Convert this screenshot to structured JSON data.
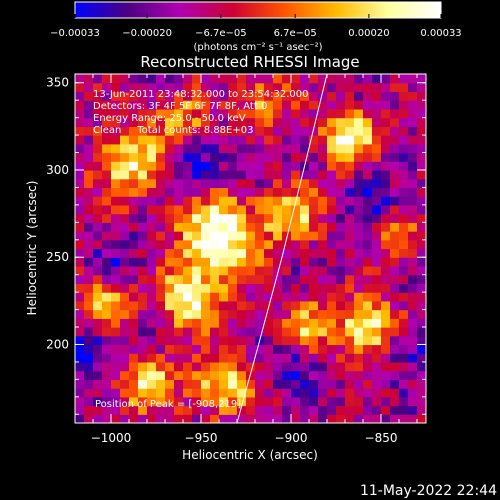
{
  "chart_data": {
    "type": "heatmap",
    "title": "Reconstructed RHESSI Image",
    "xlabel": "Heliocentric X (arcsec)",
    "ylabel": "Heliocentric Y (arcsec)",
    "xlim": [
      -1020,
      -825
    ],
    "ylim": [
      155,
      355
    ],
    "x_ticks": [
      {
        "value": -1000,
        "label": "−1000"
      },
      {
        "value": -950,
        "label": "−950"
      },
      {
        "value": -900,
        "label": "−900"
      },
      {
        "value": -850,
        "label": "−850"
      }
    ],
    "y_ticks": [
      {
        "value": 200,
        "label": "200"
      },
      {
        "value": 250,
        "label": "250"
      },
      {
        "value": 300,
        "label": "300"
      },
      {
        "value": 350,
        "label": "350"
      }
    ],
    "colorbar": {
      "range": [
        -0.00033,
        0.00033
      ],
      "tick_values": [
        -0.00033,
        -0.0002,
        -6.7e-05,
        6.7e-05,
        0.0002,
        0.00033
      ],
      "tick_labels": [
        "−0.00033",
        "−0.00020",
        "−6.7e−05",
        "6.7e−05",
        "0.00020",
        "0.00033"
      ],
      "unit_label": "(photons cm⁻² s⁻¹ asec⁻²)",
      "colors": [
        "#0000ff",
        "#4b0082",
        "#b000b0",
        "#cc0033",
        "#ff5500",
        "#ffbb00",
        "#ffffa0",
        "#ffffff"
      ]
    },
    "info_lines": [
      "13-Jun-2011 23:48:32.000 to 23:54:32.000",
      "Detectors: 3F 4F 5F 6F 7F 8F, Att 0",
      "Energy Range: 25.0 - 50.0 keV",
      "Clean     Total counts: 8.88E+03"
    ],
    "peak_label": "Position of Peak = [-908,219]",
    "limb_points": [
      [
        -930,
        155
      ],
      [
        -918,
        200
      ],
      [
        -905,
        250
      ],
      [
        -893,
        300
      ],
      [
        -880,
        355
      ]
    ],
    "hotspots": [
      {
        "x": -940,
        "y": 262,
        "a": 1.0,
        "s": 16
      },
      {
        "x": -956,
        "y": 226,
        "a": 0.85,
        "s": 12
      },
      {
        "x": -938,
        "y": 178,
        "a": 0.75,
        "s": 12
      },
      {
        "x": -980,
        "y": 178,
        "a": 0.7,
        "s": 11
      },
      {
        "x": -990,
        "y": 305,
        "a": 0.75,
        "s": 14
      },
      {
        "x": -1005,
        "y": 225,
        "a": 0.6,
        "s": 10
      },
      {
        "x": -900,
        "y": 275,
        "a": 0.6,
        "s": 12
      },
      {
        "x": -868,
        "y": 320,
        "a": 0.85,
        "s": 11
      },
      {
        "x": -858,
        "y": 210,
        "a": 0.9,
        "s": 11
      },
      {
        "x": -890,
        "y": 212,
        "a": 0.55,
        "s": 10
      },
      {
        "x": -915,
        "y": 340,
        "a": 0.55,
        "s": 10
      },
      {
        "x": -840,
        "y": 260,
        "a": 0.45,
        "s": 9
      },
      {
        "x": -960,
        "y": 330,
        "a": 0.5,
        "s": 10
      }
    ],
    "coldspots": [
      {
        "x": -955,
        "y": 300,
        "a": 0.9,
        "s": 10
      },
      {
        "x": -1010,
        "y": 195,
        "a": 0.8,
        "s": 10
      },
      {
        "x": -855,
        "y": 285,
        "a": 0.7,
        "s": 9
      },
      {
        "x": -835,
        "y": 200,
        "a": 0.8,
        "s": 8
      },
      {
        "x": -900,
        "y": 185,
        "a": 0.6,
        "s": 9
      },
      {
        "x": -925,
        "y": 300,
        "a": 0.5,
        "s": 9
      },
      {
        "x": -995,
        "y": 250,
        "a": 0.5,
        "s": 9
      }
    ]
  },
  "footer": {
    "timestamp": "11-May-2022 22:44"
  }
}
